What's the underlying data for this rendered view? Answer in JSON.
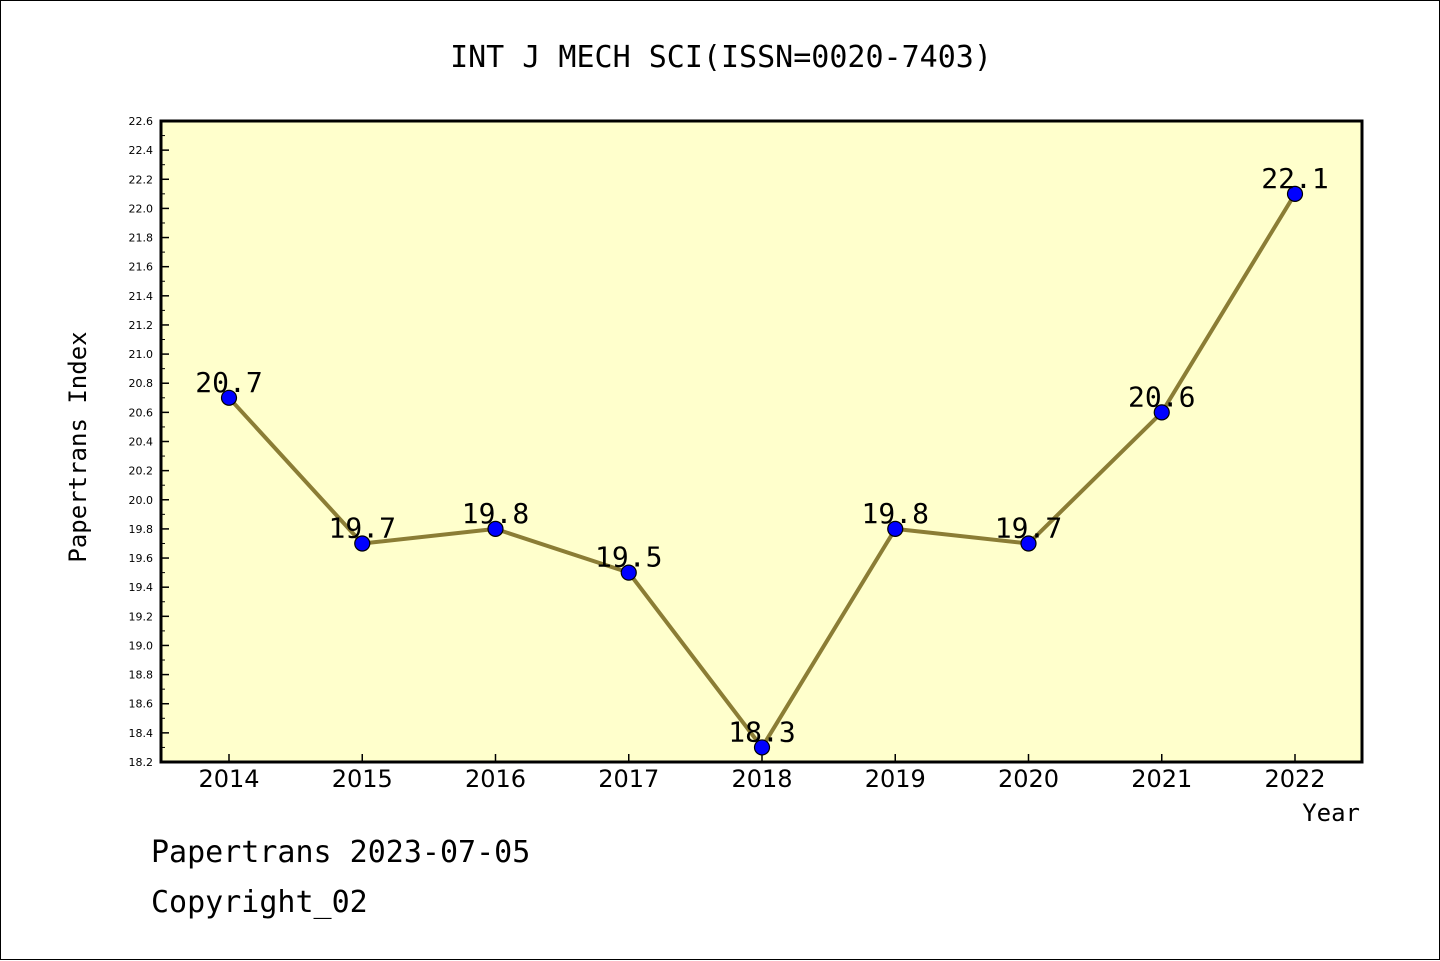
{
  "chart_data": {
    "type": "line",
    "title": "INT J MECH SCI(ISSN=0020-7403)",
    "xlabel": "Year",
    "ylabel": "Papertrans Index",
    "categories": [
      "2014",
      "2015",
      "2016",
      "2017",
      "2018",
      "2019",
      "2020",
      "2021",
      "2022"
    ],
    "series": [
      {
        "values": [
          20.7,
          19.7,
          19.8,
          19.5,
          18.3,
          19.8,
          19.7,
          20.6,
          22.1
        ]
      }
    ],
    "data_labels": [
      "20.7",
      "19.7",
      "19.8",
      "19.5",
      "18.3",
      "19.8",
      "19.7",
      "20.6",
      "22.1"
    ],
    "ylim": [
      18.2,
      22.6
    ],
    "yticks": [
      "18.2",
      "18.4",
      "18.6",
      "18.8",
      "19.0",
      "19.2",
      "19.4",
      "19.6",
      "19.8",
      "20.0",
      "20.2",
      "20.4",
      "20.6",
      "20.8",
      "21.0",
      "21.2",
      "21.4",
      "21.6",
      "21.8",
      "22.0",
      "22.2",
      "22.4",
      "22.6"
    ],
    "grid": false,
    "legend": "none",
    "colors": {
      "plot_background": "#ffffcc",
      "line": "#8b7d35",
      "marker": "#0000ff"
    }
  },
  "footer": {
    "line1": "Papertrans 2023-07-05",
    "line2": "Copyright_02"
  }
}
